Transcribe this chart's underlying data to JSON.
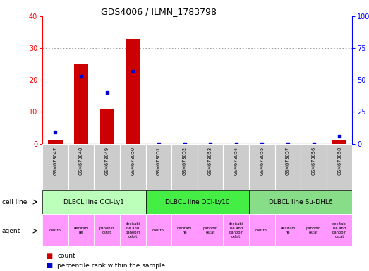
{
  "title": "GDS4006 / ILMN_1783798",
  "samples": [
    "GSM673047",
    "GSM673048",
    "GSM673049",
    "GSM673050",
    "GSM673051",
    "GSM673052",
    "GSM673053",
    "GSM673054",
    "GSM673055",
    "GSM673057",
    "GSM673056",
    "GSM673058"
  ],
  "counts": [
    1,
    25,
    11,
    33,
    0,
    0,
    0,
    0,
    0,
    0,
    0,
    1
  ],
  "percentiles": [
    9,
    53,
    40,
    57,
    0,
    0,
    0,
    0,
    0,
    0,
    0,
    6
  ],
  "ylim_left": [
    0,
    40
  ],
  "ylim_right": [
    0,
    100
  ],
  "yticks_left": [
    0,
    10,
    20,
    30,
    40
  ],
  "yticks_right": [
    0,
    25,
    50,
    75,
    100
  ],
  "yticklabels_right": [
    "0",
    "25",
    "50",
    "75",
    "100%"
  ],
  "bar_color": "#cc0000",
  "dot_color": "#0000cc",
  "cell_lines": [
    {
      "label": "DLBCL line OCI-Ly1",
      "start": 0,
      "end": 3,
      "color": "#bbffbb"
    },
    {
      "label": "DLBCL line OCI-Ly10",
      "start": 4,
      "end": 7,
      "color": "#44ee44"
    },
    {
      "label": "DLBCL line Su-DHL6",
      "start": 8,
      "end": 11,
      "color": "#88dd88"
    }
  ],
  "agents": [
    {
      "label": "control",
      "col": 0
    },
    {
      "label": "decitabi\nne",
      "col": 1
    },
    {
      "label": "panobin\nostat",
      "col": 2
    },
    {
      "label": "decitabi\nne and\npanobin\nostat",
      "col": 3
    },
    {
      "label": "control",
      "col": 4
    },
    {
      "label": "decitabi\nne",
      "col": 5
    },
    {
      "label": "panobin\nostat",
      "col": 6
    },
    {
      "label": "decitabi\nne and\npanobin\nostat",
      "col": 7
    },
    {
      "label": "control",
      "col": 8
    },
    {
      "label": "decitabi\nne",
      "col": 9
    },
    {
      "label": "panobin\nostat",
      "col": 10
    },
    {
      "label": "decitabi\nne and\npanobin\nostat",
      "col": 11
    }
  ],
  "agent_color": "#ff99ff",
  "sample_bg": "#cccccc",
  "legend_count_label": "count",
  "legend_pct_label": "percentile rank within the sample",
  "grid_color": "#888888",
  "bg_color": "#ffffff"
}
